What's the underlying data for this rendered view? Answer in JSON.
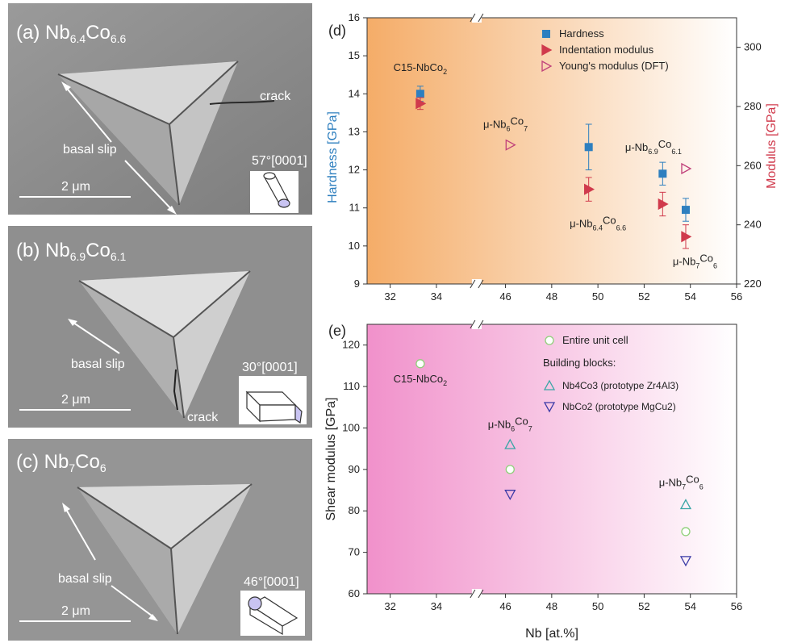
{
  "sem_panels": [
    {
      "letter": "(a)",
      "name": "Nb",
      "sub1": "6.4",
      "name2": "Co",
      "sub2": "6.6",
      "annotations": [
        "basal slip",
        "crack"
      ],
      "orientation": "57°[0001]",
      "scale": "2 μm"
    },
    {
      "letter": "(b)",
      "name": "Nb",
      "sub1": "6.9",
      "name2": "Co",
      "sub2": "6.1",
      "annotations": [
        "basal slip",
        "crack"
      ],
      "orientation": "30°[0001]",
      "scale": "2 μm"
    },
    {
      "letter": "(c)",
      "name": "Nb",
      "sub1": "7",
      "name2": "Co",
      "sub2": "6",
      "annotations": [
        "basal slip"
      ],
      "orientation": "46°[0001]",
      "scale": "2 μm"
    }
  ],
  "colors": {
    "hardness": "#2e7fbf",
    "modulus": "#d03a4c",
    "dft": "#c0407a",
    "cell": "#8fd07a",
    "blockA": "#3aa6a6",
    "blockB": "#3a3aa6",
    "bgD": "#f4a860",
    "bgE": "#f08bc8"
  },
  "chart_data": [
    {
      "panel": "(d)",
      "type": "scatter",
      "xlabel": "",
      "ylabel": "Hardness [GPa]",
      "y2label": "Modulus [GPa]",
      "xticks": [
        "32",
        "34",
        "46",
        "48",
        "50",
        "52",
        "54",
        "56"
      ],
      "ylim": [
        9,
        16
      ],
      "y2lim": [
        220,
        310
      ],
      "yticks": [
        9,
        10,
        11,
        12,
        13,
        14,
        15,
        16
      ],
      "y2ticks": [
        220,
        240,
        260,
        280,
        300
      ],
      "legend": [
        "Hardness",
        "Indentation modulus",
        "Young's modulus (DFT)"
      ],
      "legend_position": "top-right",
      "series": [
        {
          "name": "Hardness",
          "axis": "left",
          "marker": "square-filled",
          "points": [
            {
              "x": 33.3,
              "y": 14.0,
              "err": 0.2
            },
            {
              "x": 49.6,
              "y": 12.6,
              "err": 0.6
            },
            {
              "x": 52.8,
              "y": 11.9,
              "err": 0.3
            },
            {
              "x": 53.8,
              "y": 10.95,
              "err": 0.3
            }
          ]
        },
        {
          "name": "Indentation modulus",
          "axis": "right",
          "marker": "triangle-right-filled",
          "points": [
            {
              "x": 33.3,
              "y": 281,
              "err": 2
            },
            {
              "x": 49.6,
              "y": 252,
              "err": 4
            },
            {
              "x": 52.8,
              "y": 247,
              "err": 4
            },
            {
              "x": 53.8,
              "y": 236,
              "err": 4
            }
          ]
        },
        {
          "name": "Young's modulus (DFT)",
          "axis": "right",
          "marker": "triangle-right-open",
          "points": [
            {
              "x": 46.2,
              "y": 267
            },
            {
              "x": 53.8,
              "y": 259
            }
          ]
        }
      ],
      "annotations": [
        {
          "main": "C15-NbCo",
          "sub": "2",
          "x": 33.3,
          "y": 14.6
        },
        {
          "main": "μ-Nb",
          "sub": "6",
          "main2": "Co",
          "sub2": "7",
          "x": 46.0,
          "y": 13.1
        },
        {
          "main": "μ-Nb",
          "sub": "6.4",
          "main2": "Co",
          "sub2": "6.6",
          "x": 50.0,
          "y": 10.5
        },
        {
          "main": "μ-Nb",
          "sub": "6.9",
          "main2": "Co",
          "sub2": "6.1",
          "x": 52.4,
          "y": 12.5
        },
        {
          "main": "μ-Nb",
          "sub": "7",
          "main2": "Co",
          "sub2": "6",
          "x": 54.2,
          "y": 9.5
        }
      ]
    },
    {
      "panel": "(e)",
      "type": "scatter",
      "xlabel": "Nb [at.%]",
      "ylabel": "Shear modulus [GPa]",
      "xticks": [
        "32",
        "34",
        "46",
        "48",
        "50",
        "52",
        "54",
        "56"
      ],
      "ylim": [
        60,
        125
      ],
      "yticks": [
        60,
        70,
        80,
        90,
        100,
        110,
        120
      ],
      "legend": [
        "Entire unit cell",
        "Building blocks:",
        "Nb4Co3 (prototype Zr4Al3)",
        "NbCo2 (prototype MgCu2)"
      ],
      "legend_position": "top-right",
      "series": [
        {
          "name": "Entire unit cell",
          "marker": "circle-open",
          "points": [
            {
              "x": 33.3,
              "y": 115.5
            },
            {
              "x": 46.2,
              "y": 90
            },
            {
              "x": 53.8,
              "y": 75
            }
          ]
        },
        {
          "name": "Nb4Co3",
          "marker": "triangle-up-open",
          "points": [
            {
              "x": 46.2,
              "y": 96
            },
            {
              "x": 53.8,
              "y": 81.5
            }
          ]
        },
        {
          "name": "NbCo2",
          "marker": "triangle-down-open",
          "points": [
            {
              "x": 46.2,
              "y": 84
            },
            {
              "x": 53.8,
              "y": 68
            }
          ]
        }
      ],
      "annotations": [
        {
          "main": "C15-NbCo",
          "sub": "2",
          "x": 33.3,
          "y": 111
        },
        {
          "main": "μ-Nb",
          "sub": "6",
          "main2": "Co",
          "sub2": "7",
          "x": 46.2,
          "y": 100
        },
        {
          "main": "μ-Nb",
          "sub": "7",
          "main2": "Co",
          "sub2": "6",
          "x": 53.6,
          "y": 86
        }
      ]
    }
  ]
}
